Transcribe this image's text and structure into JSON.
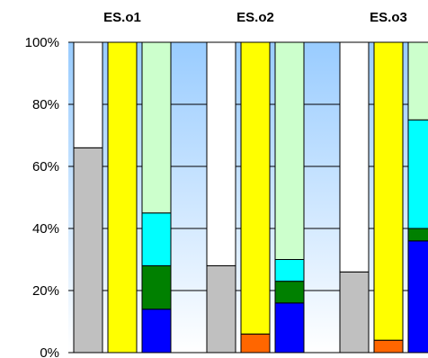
{
  "chart_data": {
    "type": "bar",
    "stacked": "percent",
    "y_axis": {
      "ylim": [
        0,
        100
      ],
      "ticks": [
        "0%",
        "20%",
        "40%",
        "60%",
        "80%",
        "100%"
      ],
      "grid": true
    },
    "plot_background": "gradient from #99ccff at top to #ffffff at bottom",
    "groups": [
      {
        "title": "ES.o1",
        "bars": [
          {
            "segments": [
              {
                "value": 66,
                "color": "#c0c0c0"
              },
              {
                "value": 34,
                "color": "#ffffff"
              }
            ]
          },
          {
            "segments": [
              {
                "value": 100,
                "color": "#ffff00"
              }
            ]
          },
          {
            "segments": [
              {
                "value": 14,
                "color": "#0000ff"
              },
              {
                "value": 14,
                "color": "#008000"
              },
              {
                "value": 17,
                "color": "#00ffff"
              },
              {
                "value": 55,
                "color": "#ccffcc"
              }
            ]
          }
        ]
      },
      {
        "title": "ES.o2",
        "bars": [
          {
            "segments": [
              {
                "value": 28,
                "color": "#c0c0c0"
              },
              {
                "value": 72,
                "color": "#ffffff"
              }
            ]
          },
          {
            "segments": [
              {
                "value": 6,
                "color": "#ff6600"
              },
              {
                "value": 94,
                "color": "#ffff00"
              }
            ]
          },
          {
            "segments": [
              {
                "value": 16,
                "color": "#0000ff"
              },
              {
                "value": 7,
                "color": "#008000"
              },
              {
                "value": 7,
                "color": "#00ffff"
              },
              {
                "value": 70,
                "color": "#ccffcc"
              }
            ]
          }
        ]
      },
      {
        "title": "ES.o3",
        "bars": [
          {
            "segments": [
              {
                "value": 26,
                "color": "#c0c0c0"
              },
              {
                "value": 74,
                "color": "#ffffff"
              }
            ]
          },
          {
            "segments": [
              {
                "value": 4,
                "color": "#ff6600"
              },
              {
                "value": 96,
                "color": "#ffff00"
              }
            ]
          },
          {
            "segments": [
              {
                "value": 36,
                "color": "#0000ff"
              },
              {
                "value": 4,
                "color": "#008000"
              },
              {
                "value": 35,
                "color": "#00ffff"
              },
              {
                "value": 25,
                "color": "#ccffcc"
              }
            ]
          }
        ]
      }
    ]
  }
}
